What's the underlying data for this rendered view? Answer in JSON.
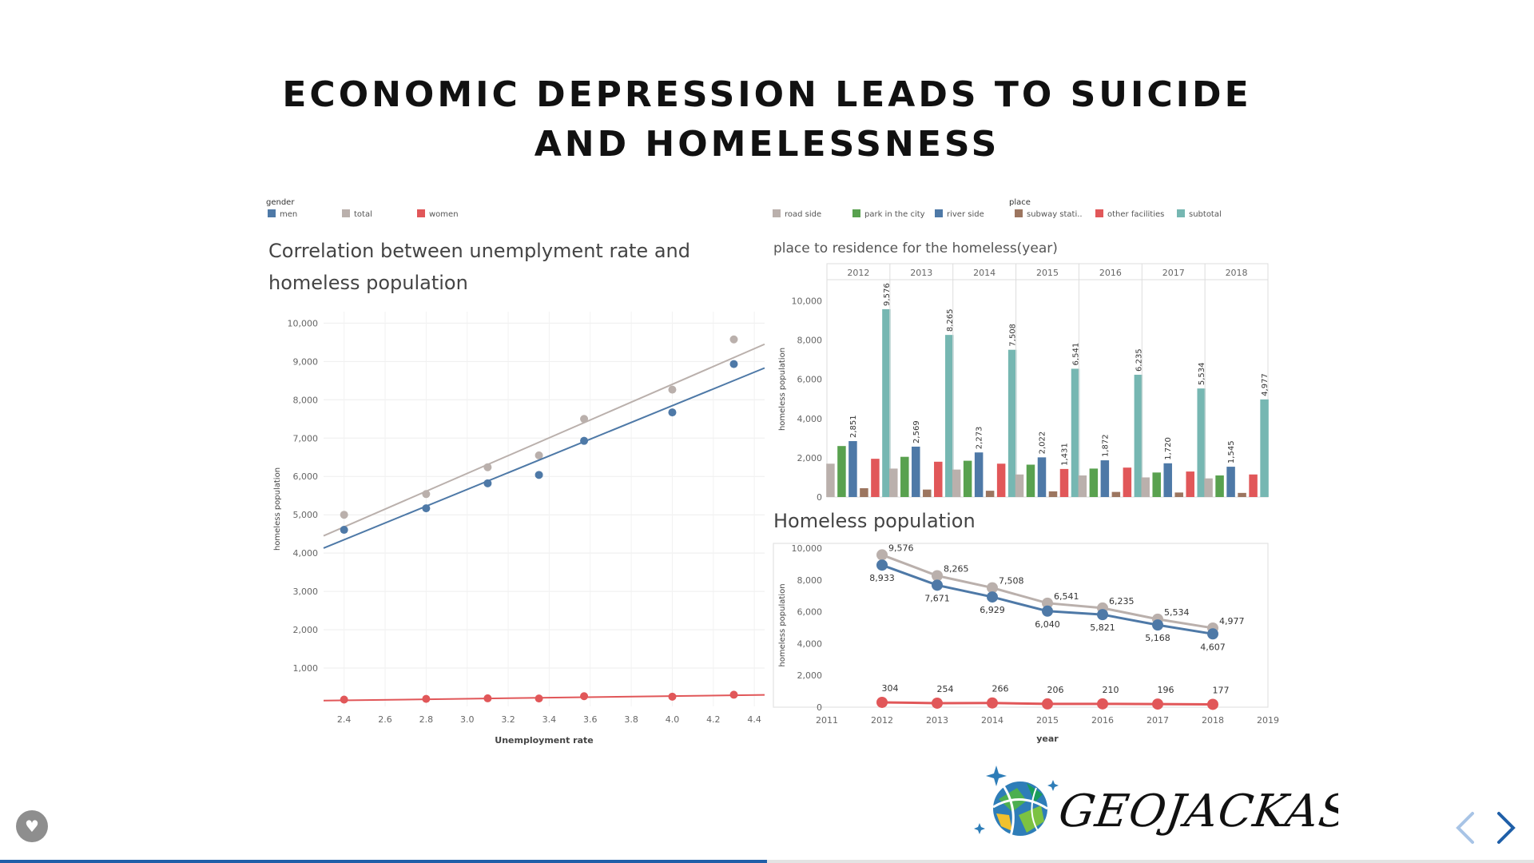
{
  "slide": {
    "title_lines": [
      "ECONOMIC DEPRESSION LEADS TO SUICIDE",
      "AND HOMELESSNESS"
    ],
    "progress": 0.5,
    "brand": "GEOJACKASS"
  },
  "legends": {
    "gender": {
      "title": "gender",
      "items": [
        {
          "label": "men",
          "color": "#4e79a7"
        },
        {
          "label": "total",
          "color": "#bab0ac"
        },
        {
          "label": "women",
          "color": "#e15759"
        }
      ]
    },
    "place": {
      "title": "place",
      "items": [
        {
          "label": "road side",
          "color": "#bab0ac"
        },
        {
          "label": "park in the city",
          "color": "#59a14f"
        },
        {
          "label": "river side",
          "color": "#4e79a7"
        },
        {
          "label": "subway stati..",
          "color": "#9c755f"
        },
        {
          "label": "other facilities",
          "color": "#e15759"
        },
        {
          "label": "subtotal",
          "color": "#76b7b2"
        }
      ]
    }
  },
  "chart_data": [
    {
      "type": "scatter",
      "title_lines": [
        "Correlation between unemplyment rate and",
        "homeless population"
      ],
      "xlabel": "Unemployment rate",
      "ylabel": "homeless population",
      "xlim": [
        2.3,
        4.45
      ],
      "ylim": [
        0,
        10300
      ],
      "xticks": [
        "2.4",
        "2.6",
        "2.8",
        "3.0",
        "3.2",
        "3.4",
        "3.6",
        "3.8",
        "4.0",
        "4.2",
        "4.4"
      ],
      "yticks": [
        "1,000",
        "2,000",
        "3,000",
        "4,000",
        "5,000",
        "6,000",
        "7,000",
        "8,000",
        "9,000",
        "10,000"
      ],
      "grid": true,
      "series": [
        {
          "name": "total",
          "color": "#bab0ac",
          "x": [
            2.4,
            2.8,
            3.1,
            3.35,
            3.57,
            4.0,
            4.3
          ],
          "y": [
            5000,
            5540,
            6240,
            6550,
            7500,
            8265,
            9576
          ],
          "trend": [
            [
              2.3,
              4450
            ],
            [
              4.45,
              9450
            ]
          ]
        },
        {
          "name": "men",
          "color": "#4e79a7",
          "x": [
            2.4,
            2.8,
            3.1,
            3.35,
            3.57,
            4.0,
            4.3
          ],
          "y": [
            4607,
            5168,
            5821,
            6040,
            6929,
            7671,
            8933
          ],
          "trend": [
            [
              2.3,
              4130
            ],
            [
              4.45,
              8830
            ]
          ]
        },
        {
          "name": "women",
          "color": "#e15759",
          "x": [
            2.4,
            2.8,
            3.1,
            3.35,
            3.57,
            4.0,
            4.3
          ],
          "y": [
            177,
            196,
            210,
            206,
            266,
            254,
            304
          ],
          "trend": [
            [
              2.3,
              150
            ],
            [
              4.45,
              300
            ]
          ]
        }
      ]
    },
    {
      "type": "bar",
      "title": "place to residence for the homeless(year)",
      "ylabel": "homeless population",
      "ylim": [
        0,
        11000
      ],
      "yticks": [
        "0",
        "2,000",
        "4,000",
        "6,000",
        "8,000",
        "10,000"
      ],
      "categories": [
        "2012",
        "2013",
        "2014",
        "2015",
        "2016",
        "2017",
        "2018"
      ],
      "series": [
        {
          "name": "road side",
          "color": "#bab0ac",
          "values": [
            1700,
            1450,
            1400,
            1150,
            1100,
            1000,
            950
          ]
        },
        {
          "name": "park in the city",
          "color": "#59a14f",
          "values": [
            2600,
            2050,
            1850,
            1650,
            1450,
            1250,
            1100
          ]
        },
        {
          "name": "river side",
          "color": "#4e79a7",
          "values": [
            2851,
            2569,
            2273,
            2022,
            1872,
            1720,
            1545
          ],
          "labels": [
            "2,851",
            "2,569",
            "2,273",
            "2,022",
            "1,872",
            "1,720",
            "1,545"
          ]
        },
        {
          "name": "subway stati..",
          "color": "#9c755f",
          "values": [
            450,
            380,
            320,
            290,
            260,
            230,
            210
          ]
        },
        {
          "name": "other facilities",
          "color": "#e15759",
          "values": [
            1950,
            1800,
            1700,
            1431,
            1500,
            1300,
            1150
          ],
          "labels": [
            "",
            "",
            "",
            "1,431",
            "",
            "",
            ""
          ]
        },
        {
          "name": "subtotal",
          "color": "#76b7b2",
          "values": [
            9576,
            8265,
            7508,
            6541,
            6235,
            5534,
            4977
          ],
          "labels": [
            "9,576",
            "8,265",
            "7,508",
            "6,541",
            "6,235",
            "5,534",
            "4,977"
          ]
        }
      ]
    },
    {
      "type": "line",
      "title": "Homeless population",
      "xlabel": "year",
      "ylabel": "homeless population",
      "xlim": [
        2011,
        2019
      ],
      "ylim": [
        0,
        10300
      ],
      "xticks": [
        "2011",
        "2012",
        "2013",
        "2014",
        "2015",
        "2016",
        "2017",
        "2018",
        "2019"
      ],
      "yticks": [
        "0",
        "2,000",
        "4,000",
        "6,000",
        "8,000",
        "10,000"
      ],
      "x": [
        2012,
        2013,
        2014,
        2015,
        2016,
        2017,
        2018
      ],
      "series": [
        {
          "name": "total",
          "color": "#bab0ac",
          "values": [
            9576,
            8265,
            7508,
            6541,
            6235,
            5534,
            4977
          ],
          "labels": [
            "9,576",
            "8,265",
            "7,508",
            "6,541",
            "6,235",
            "5,534",
            "4,977"
          ]
        },
        {
          "name": "men",
          "color": "#4e79a7",
          "values": [
            8933,
            7671,
            6929,
            6040,
            5821,
            5168,
            4607
          ],
          "labels": [
            "8,933",
            "7,671",
            "6,929",
            "6,040",
            "5,821",
            "5,168",
            "4,607"
          ]
        },
        {
          "name": "women",
          "color": "#e15759",
          "values": [
            304,
            254,
            266,
            206,
            210,
            196,
            177
          ],
          "labels": [
            "304",
            "254",
            "266",
            "206",
            "210",
            "196",
            "177"
          ]
        }
      ]
    }
  ]
}
